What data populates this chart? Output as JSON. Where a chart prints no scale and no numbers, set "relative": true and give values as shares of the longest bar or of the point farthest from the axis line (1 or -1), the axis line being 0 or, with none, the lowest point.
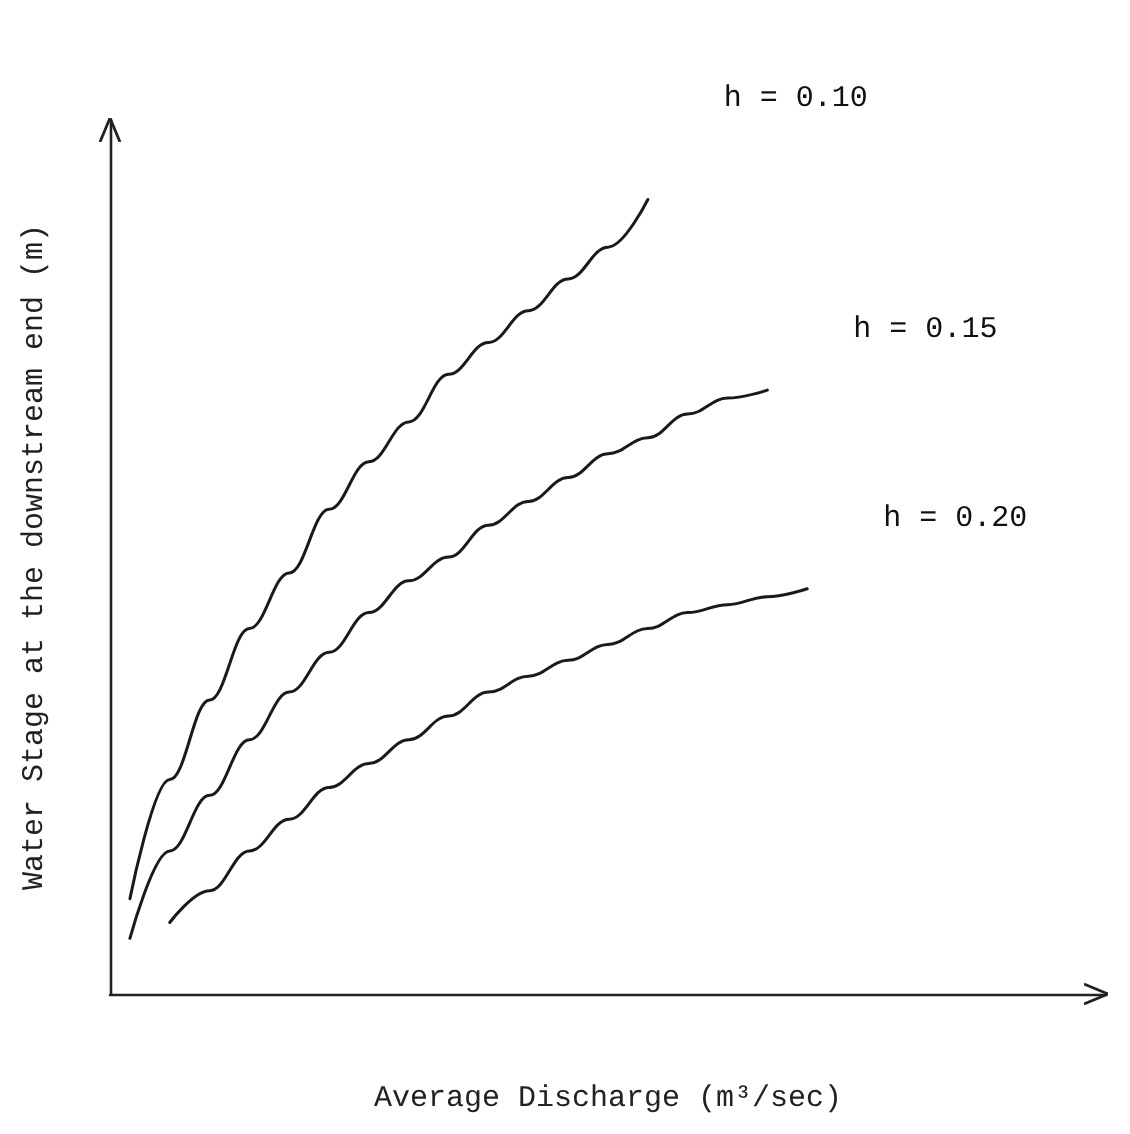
{
  "chart_data": {
    "type": "line",
    "relative": true,
    "xlabel": "Average Discharge (m³/sec)",
    "ylabel": "Water Stage at the downstream end (m)",
    "categories": [
      null,
      null,
      null,
      null,
      null,
      null,
      null,
      null,
      null,
      null,
      null,
      null,
      null,
      null,
      null,
      null,
      null,
      null,
      null,
      null,
      null,
      null,
      null,
      null,
      null
    ],
    "series": [
      {
        "name": "h = 0.10",
        "color": "#1a1a1a",
        "values": [
          0.12,
          0.27,
          0.37,
          0.46,
          0.53,
          0.61,
          0.67,
          0.72,
          0.78,
          0.82,
          0.86,
          0.9,
          0.94,
          1.0,
          null,
          null,
          null,
          null,
          null,
          null,
          null,
          null,
          null,
          null,
          null
        ]
      },
      {
        "name": "h = 0.15",
        "color": "#1a1a1a",
        "values": [
          0.07,
          0.18,
          0.25,
          0.32,
          0.38,
          0.43,
          0.48,
          0.52,
          0.55,
          0.59,
          0.62,
          0.65,
          0.68,
          0.7,
          0.73,
          0.75,
          0.76,
          null,
          null,
          null,
          null,
          null,
          null,
          null,
          null
        ]
      },
      {
        "name": "h = 0.20",
        "color": "#1a1a1a",
        "values": [
          null,
          0.09,
          0.13,
          0.18,
          0.22,
          0.26,
          0.29,
          0.32,
          0.35,
          0.38,
          0.4,
          0.42,
          0.44,
          0.46,
          0.48,
          0.49,
          0.5,
          0.51,
          null,
          null,
          null,
          null,
          null,
          null,
          null
        ]
      }
    ],
    "grid": false,
    "legend": false,
    "marker": "none",
    "line_style": "solid"
  }
}
